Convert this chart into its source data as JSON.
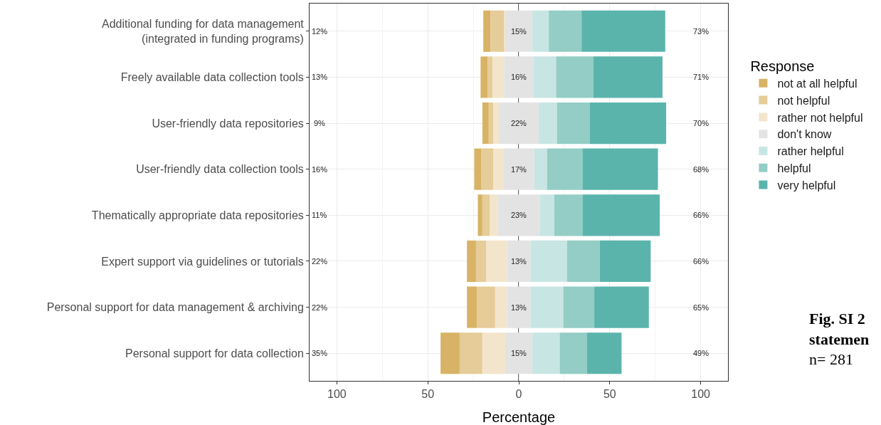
{
  "chart_data": {
    "type": "bar",
    "orientation": "horizontal",
    "xlabel": "Percentage",
    "legend_title": "Response",
    "legend": "right",
    "grid": true,
    "categories": [
      "Additional funding for data management\n(integrated in funding programs)",
      "Freely available data collection tools",
      "User-friendly data repositories",
      "User-friendly data collection tools",
      "Thematically appropriate data repositories",
      "Expert support via guidelines or tutorials",
      "Personal support for data management & archiving",
      "Personal support for data collection"
    ],
    "xlim": [
      -115,
      115
    ],
    "xticks": [
      {
        "value": -100,
        "label": "100"
      },
      {
        "value": -50,
        "label": "50"
      },
      0,
      50,
      100
    ],
    "series": [
      {
        "name": "not at all helpful",
        "color": "#d8b365",
        "values": [
          4,
          4,
          3.5,
          4,
          2.5,
          5,
          5.5,
          10.5
        ],
        "base": [
          -19.5,
          -21,
          -20,
          -24.5,
          -22.5,
          -28.5,
          -28.5,
          -43
        ]
      },
      {
        "name": "not helpful",
        "color": "#e5cc98",
        "values": [
          7.5,
          2.5,
          2.5,
          6.5,
          4,
          5.5,
          10,
          12.5
        ],
        "base": [
          -15.5,
          -17,
          -16.5,
          -20.5,
          -20,
          -23.5,
          -23,
          -32.5
        ]
      },
      {
        "name": "rather not helpful",
        "color": "#f3e5cb",
        "values": [
          0.5,
          6.5,
          3,
          5.5,
          4.5,
          11.5,
          6.5,
          12.5
        ],
        "base": [
          -8,
          -14.5,
          -14,
          -14,
          -16,
          -18,
          -13,
          -20
        ]
      },
      {
        "name": "don't know",
        "color": "#e3e3e3",
        "values": [
          15,
          16,
          22,
          17,
          23,
          13,
          13,
          15
        ],
        "base": [
          -7.5,
          -8,
          -11,
          -8.5,
          -11.5,
          -6.5,
          -6.5,
          -7.5
        ],
        "value_labels": [
          "15%",
          "16%",
          "22%",
          "17%",
          "23%",
          "13%",
          "13%",
          "15%"
        ]
      },
      {
        "name": "rather helpful",
        "color": "#c7e5e3",
        "values": [
          9,
          12.5,
          10,
          7,
          8,
          20,
          18,
          15
        ],
        "base": [
          7.5,
          8,
          11,
          8.5,
          11.5,
          6.5,
          6.5,
          7.5
        ]
      },
      {
        "name": "helpful",
        "color": "#93cdc5",
        "values": [
          18,
          20.5,
          18,
          19.5,
          15.5,
          18,
          17,
          15
        ],
        "base": [
          16.5,
          20.5,
          21,
          15.5,
          19.5,
          26.5,
          24.5,
          22.5
        ]
      },
      {
        "name": "very helpful",
        "color": "#5ab4ac",
        "values": [
          46,
          38,
          42,
          41.5,
          42.5,
          28,
          30,
          19
        ],
        "base": [
          34.5,
          41,
          39,
          35,
          35,
          44.5,
          41.5,
          37.5
        ]
      }
    ],
    "ref_lines": [
      {
        "axis": "x",
        "value": 0,
        "color": "#333333"
      }
    ],
    "annotations": [
      "12%",
      "13%",
      "9%",
      "16%",
      "11%",
      "22%",
      "22%",
      "35%",
      "73%",
      "71%",
      "70%",
      "68%",
      "66%",
      "66%",
      "65%",
      "49%",
      "Fig. SI 2\nstatemen\nn= 281"
    ]
  }
}
